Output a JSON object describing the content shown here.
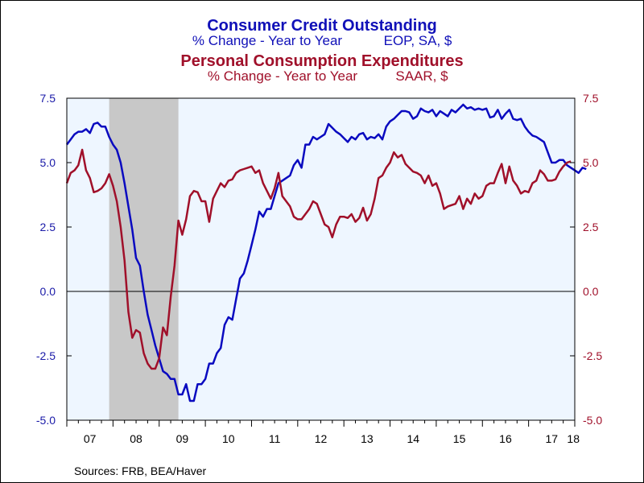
{
  "header": {
    "title1": "Consumer Credit Outstanding",
    "subtitle1a": "% Change - Year to Year",
    "subtitle1b": "EOP, SA, $",
    "title2": "Personal Consumption Expenditures",
    "subtitle2a": "% Change - Year to Year",
    "subtitle2b": "SAAR, $"
  },
  "footer": {
    "source": "Sources:  FRB, BEA/Haver"
  },
  "colors": {
    "series_blue": "#0a0ac0",
    "series_red": "#a0102a",
    "plot_bg": "#eef6ff",
    "recession": "#c8c8c8"
  },
  "chart_data": {
    "type": "line",
    "x_tick_labels": [
      "07",
      "08",
      "09",
      "10",
      "11",
      "12",
      "13",
      "14",
      "15",
      "16",
      "17",
      "18"
    ],
    "xlim": [
      "2007-01",
      "2018-01"
    ],
    "ylim_left": [
      -5.0,
      7.5
    ],
    "ylim_right": [
      -5.0,
      7.5
    ],
    "y_tick_labels_left": [
      "7.5",
      "5.0",
      "2.5",
      "0.0",
      "-2.5",
      "-5.0"
    ],
    "y_tick_labels_right": [
      "7.5",
      "5.0",
      "2.5",
      "0.0",
      "-2.5",
      "-5.0"
    ],
    "recession_shading": [
      "2007-12",
      "2009-06"
    ],
    "zero_line": true,
    "grid": false,
    "series": [
      {
        "axis": "left",
        "color": "#0a0ac0",
        "points": [
          [
            "2007-01",
            5.7
          ],
          [
            "2007-02",
            5.9
          ],
          [
            "2007-03",
            6.1
          ],
          [
            "2007-04",
            6.2
          ],
          [
            "2007-05",
            6.2
          ],
          [
            "2007-06",
            6.3
          ],
          [
            "2007-07",
            6.15
          ],
          [
            "2007-08",
            6.5
          ],
          [
            "2007-09",
            6.55
          ],
          [
            "2007-10",
            6.4
          ],
          [
            "2007-11",
            6.4
          ],
          [
            "2007-12",
            6.0
          ],
          [
            "2008-01",
            5.7
          ],
          [
            "2008-02",
            5.5
          ],
          [
            "2008-03",
            5.0
          ],
          [
            "2008-04",
            4.2
          ],
          [
            "2008-05",
            3.3
          ],
          [
            "2008-06",
            2.4
          ],
          [
            "2008-07",
            1.3
          ],
          [
            "2008-08",
            1.0
          ],
          [
            "2008-09",
            0.0
          ],
          [
            "2008-10",
            -0.9
          ],
          [
            "2008-11",
            -1.5
          ],
          [
            "2008-12",
            -2.1
          ],
          [
            "2009-01",
            -2.6
          ],
          [
            "2009-02",
            -3.1
          ],
          [
            "2009-03",
            -3.2
          ],
          [
            "2009-04",
            -3.4
          ],
          [
            "2009-05",
            -3.4
          ],
          [
            "2009-06",
            -4.0
          ],
          [
            "2009-07",
            -4.0
          ],
          [
            "2009-08",
            -3.6
          ],
          [
            "2009-09",
            -4.25
          ],
          [
            "2009-10",
            -4.25
          ],
          [
            "2009-11",
            -3.6
          ],
          [
            "2009-12",
            -3.6
          ],
          [
            "2010-01",
            -3.4
          ],
          [
            "2010-02",
            -2.8
          ],
          [
            "2010-03",
            -2.8
          ],
          [
            "2010-04",
            -2.4
          ],
          [
            "2010-05",
            -2.2
          ],
          [
            "2010-06",
            -1.3
          ],
          [
            "2010-07",
            -1.0
          ],
          [
            "2010-08",
            -1.1
          ],
          [
            "2010-09",
            -0.3
          ],
          [
            "2010-10",
            0.5
          ],
          [
            "2010-11",
            0.7
          ],
          [
            "2010-12",
            1.2
          ],
          [
            "2011-01",
            1.8
          ],
          [
            "2011-02",
            2.4
          ],
          [
            "2011-03",
            3.1
          ],
          [
            "2011-04",
            2.9
          ],
          [
            "2011-05",
            3.2
          ],
          [
            "2011-06",
            3.2
          ],
          [
            "2011-07",
            3.7
          ],
          [
            "2011-08",
            4.2
          ],
          [
            "2011-09",
            4.3
          ],
          [
            "2011-10",
            4.4
          ],
          [
            "2011-11",
            4.5
          ],
          [
            "2011-12",
            4.9
          ],
          [
            "2012-01",
            5.1
          ],
          [
            "2012-02",
            4.8
          ],
          [
            "2012-03",
            5.7
          ],
          [
            "2012-04",
            5.7
          ],
          [
            "2012-05",
            6.0
          ],
          [
            "2012-06",
            5.9
          ],
          [
            "2012-07",
            6.0
          ],
          [
            "2012-08",
            6.1
          ],
          [
            "2012-09",
            6.5
          ],
          [
            "2012-10",
            6.35
          ],
          [
            "2012-11",
            6.2
          ],
          [
            "2012-12",
            6.1
          ],
          [
            "2013-01",
            5.95
          ],
          [
            "2013-02",
            5.8
          ],
          [
            "2013-03",
            6.0
          ],
          [
            "2013-04",
            5.9
          ],
          [
            "2013-05",
            6.1
          ],
          [
            "2013-06",
            6.15
          ],
          [
            "2013-07",
            5.9
          ],
          [
            "2013-08",
            6.0
          ],
          [
            "2013-09",
            5.95
          ],
          [
            "2013-10",
            6.1
          ],
          [
            "2013-11",
            5.9
          ],
          [
            "2013-12",
            6.4
          ],
          [
            "2014-01",
            6.6
          ],
          [
            "2014-02",
            6.7
          ],
          [
            "2014-03",
            6.85
          ],
          [
            "2014-04",
            7.0
          ],
          [
            "2014-05",
            7.0
          ],
          [
            "2014-06",
            6.95
          ],
          [
            "2014-07",
            6.7
          ],
          [
            "2014-08",
            6.8
          ],
          [
            "2014-09",
            7.1
          ],
          [
            "2014-10",
            7.0
          ],
          [
            "2014-11",
            6.95
          ],
          [
            "2014-12",
            7.05
          ],
          [
            "2015-01",
            6.8
          ],
          [
            "2015-02",
            7.0
          ],
          [
            "2015-03",
            6.9
          ],
          [
            "2015-04",
            6.8
          ],
          [
            "2015-05",
            7.05
          ],
          [
            "2015-06",
            6.95
          ],
          [
            "2015-07",
            7.1
          ],
          [
            "2015-08",
            7.25
          ],
          [
            "2015-09",
            7.1
          ],
          [
            "2015-10",
            7.15
          ],
          [
            "2015-11",
            7.05
          ],
          [
            "2015-12",
            7.1
          ],
          [
            "2016-01",
            7.05
          ],
          [
            "2016-02",
            7.1
          ],
          [
            "2016-03",
            6.75
          ],
          [
            "2016-04",
            6.8
          ],
          [
            "2016-05",
            7.05
          ],
          [
            "2016-06",
            6.7
          ],
          [
            "2016-07",
            6.9
          ],
          [
            "2016-08",
            7.05
          ],
          [
            "2016-09",
            6.7
          ],
          [
            "2016-10",
            6.65
          ],
          [
            "2016-11",
            6.7
          ],
          [
            "2016-12",
            6.4
          ],
          [
            "2017-01",
            6.2
          ],
          [
            "2017-02",
            6.05
          ],
          [
            "2017-03",
            6.0
          ],
          [
            "2017-04",
            5.9
          ],
          [
            "2017-05",
            5.8
          ],
          [
            "2017-06",
            5.4
          ],
          [
            "2017-07",
            5.0
          ],
          [
            "2017-08",
            5.0
          ],
          [
            "2017-09",
            5.1
          ],
          [
            "2017-10",
            5.1
          ],
          [
            "2017-11",
            4.9
          ],
          [
            "2017-12",
            4.8
          ],
          [
            "2018-01",
            4.7
          ],
          [
            "2018-02",
            4.6
          ],
          [
            "2018-03",
            4.8
          ],
          [
            "2018-04",
            4.75
          ]
        ]
      },
      {
        "axis": "right",
        "color": "#a0102a",
        "points": [
          [
            "2007-01",
            4.2
          ],
          [
            "2007-02",
            4.6
          ],
          [
            "2007-03",
            4.7
          ],
          [
            "2007-04",
            4.9
          ],
          [
            "2007-05",
            5.5
          ],
          [
            "2007-06",
            4.7
          ],
          [
            "2007-07",
            4.4
          ],
          [
            "2007-08",
            3.85
          ],
          [
            "2007-09",
            3.9
          ],
          [
            "2007-10",
            4.0
          ],
          [
            "2007-11",
            4.2
          ],
          [
            "2007-12",
            4.55
          ],
          [
            "2008-01",
            4.1
          ],
          [
            "2008-02",
            3.5
          ],
          [
            "2008-03",
            2.5
          ],
          [
            "2008-04",
            1.2
          ],
          [
            "2008-05",
            -0.8
          ],
          [
            "2008-06",
            -1.8
          ],
          [
            "2008-07",
            -1.5
          ],
          [
            "2008-08",
            -1.6
          ],
          [
            "2008-09",
            -2.4
          ],
          [
            "2008-10",
            -2.8
          ],
          [
            "2008-11",
            -3.0
          ],
          [
            "2008-12",
            -3.0
          ],
          [
            "2009-01",
            -2.6
          ],
          [
            "2009-02",
            -1.4
          ],
          [
            "2009-03",
            -1.7
          ],
          [
            "2009-04",
            -0.2
          ],
          [
            "2009-05",
            1.0
          ],
          [
            "2009-06",
            2.75
          ],
          [
            "2009-07",
            2.2
          ],
          [
            "2009-08",
            2.8
          ],
          [
            "2009-09",
            3.7
          ],
          [
            "2009-10",
            3.9
          ],
          [
            "2009-11",
            3.85
          ],
          [
            "2009-12",
            3.5
          ],
          [
            "2010-01",
            3.5
          ],
          [
            "2010-02",
            2.7
          ],
          [
            "2010-03",
            3.6
          ],
          [
            "2010-04",
            3.9
          ],
          [
            "2010-05",
            4.2
          ],
          [
            "2010-06",
            4.05
          ],
          [
            "2010-07",
            4.3
          ],
          [
            "2010-08",
            4.35
          ],
          [
            "2010-09",
            4.6
          ],
          [
            "2010-10",
            4.7
          ],
          [
            "2010-11",
            4.75
          ],
          [
            "2010-12",
            4.8
          ],
          [
            "2011-01",
            4.85
          ],
          [
            "2011-02",
            4.6
          ],
          [
            "2011-03",
            4.7
          ],
          [
            "2011-04",
            4.2
          ],
          [
            "2011-05",
            3.9
          ],
          [
            "2011-06",
            3.6
          ],
          [
            "2011-07",
            4.0
          ],
          [
            "2011-08",
            4.6
          ],
          [
            "2011-09",
            3.7
          ],
          [
            "2011-10",
            3.5
          ],
          [
            "2011-11",
            3.3
          ],
          [
            "2011-12",
            2.9
          ],
          [
            "2012-01",
            2.8
          ],
          [
            "2012-02",
            2.8
          ],
          [
            "2012-03",
            3.0
          ],
          [
            "2012-04",
            3.2
          ],
          [
            "2012-05",
            3.5
          ],
          [
            "2012-06",
            3.4
          ],
          [
            "2012-07",
            3.0
          ],
          [
            "2012-08",
            2.6
          ],
          [
            "2012-09",
            2.5
          ],
          [
            "2012-10",
            2.1
          ],
          [
            "2012-11",
            2.6
          ],
          [
            "2012-12",
            2.9
          ],
          [
            "2013-01",
            2.9
          ],
          [
            "2013-02",
            2.85
          ],
          [
            "2013-03",
            3.0
          ],
          [
            "2013-04",
            2.7
          ],
          [
            "2013-05",
            2.85
          ],
          [
            "2013-06",
            3.25
          ],
          [
            "2013-07",
            2.75
          ],
          [
            "2013-08",
            3.0
          ],
          [
            "2013-09",
            3.6
          ],
          [
            "2013-10",
            4.4
          ],
          [
            "2013-11",
            4.5
          ],
          [
            "2013-12",
            4.8
          ],
          [
            "2014-01",
            5.0
          ],
          [
            "2014-02",
            5.4
          ],
          [
            "2014-03",
            5.2
          ],
          [
            "2014-04",
            5.3
          ],
          [
            "2014-05",
            4.95
          ],
          [
            "2014-06",
            4.8
          ],
          [
            "2014-07",
            4.65
          ],
          [
            "2014-08",
            4.6
          ],
          [
            "2014-09",
            4.5
          ],
          [
            "2014-10",
            4.2
          ],
          [
            "2014-11",
            4.5
          ],
          [
            "2014-12",
            4.1
          ],
          [
            "2015-01",
            4.2
          ],
          [
            "2015-02",
            3.8
          ],
          [
            "2015-03",
            3.2
          ],
          [
            "2015-04",
            3.3
          ],
          [
            "2015-05",
            3.35
          ],
          [
            "2015-06",
            3.4
          ],
          [
            "2015-07",
            3.7
          ],
          [
            "2015-08",
            3.2
          ],
          [
            "2015-09",
            3.6
          ],
          [
            "2015-10",
            3.4
          ],
          [
            "2015-11",
            3.8
          ],
          [
            "2015-12",
            3.6
          ],
          [
            "2016-01",
            3.7
          ],
          [
            "2016-02",
            4.1
          ],
          [
            "2016-03",
            4.2
          ],
          [
            "2016-04",
            4.2
          ],
          [
            "2016-05",
            4.6
          ],
          [
            "2016-06",
            4.95
          ],
          [
            "2016-07",
            4.2
          ],
          [
            "2016-08",
            4.85
          ],
          [
            "2016-09",
            4.3
          ],
          [
            "2016-10",
            4.1
          ],
          [
            "2016-11",
            3.8
          ],
          [
            "2016-12",
            3.9
          ],
          [
            "2017-01",
            3.85
          ],
          [
            "2017-02",
            4.2
          ],
          [
            "2017-03",
            4.3
          ],
          [
            "2017-04",
            4.7
          ],
          [
            "2017-05",
            4.55
          ],
          [
            "2017-06",
            4.3
          ],
          [
            "2017-07",
            4.3
          ],
          [
            "2017-08",
            4.35
          ],
          [
            "2017-09",
            4.65
          ],
          [
            "2017-10",
            4.85
          ],
          [
            "2017-11",
            5.0
          ],
          [
            "2017-12",
            5.05
          ]
        ]
      }
    ]
  }
}
